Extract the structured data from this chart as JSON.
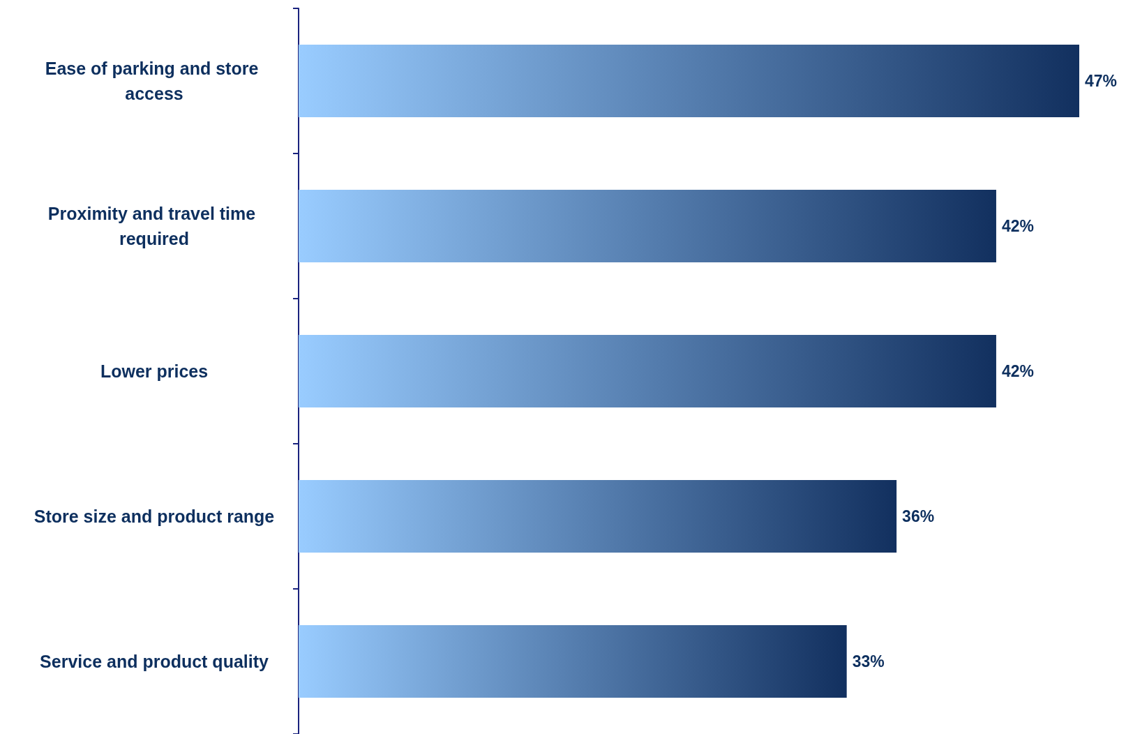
{
  "chart_data": {
    "type": "bar",
    "orientation": "horizontal",
    "categories": [
      "Ease of parking and store access",
      "Proximity and travel time required",
      "Lower prices",
      "Store size and product range",
      "Service and product quality"
    ],
    "values": [
      47,
      42,
      42,
      36,
      33
    ],
    "value_labels": [
      "47%",
      "42%",
      "42%",
      "36%",
      "33%"
    ],
    "color": "#12305f"
  }
}
